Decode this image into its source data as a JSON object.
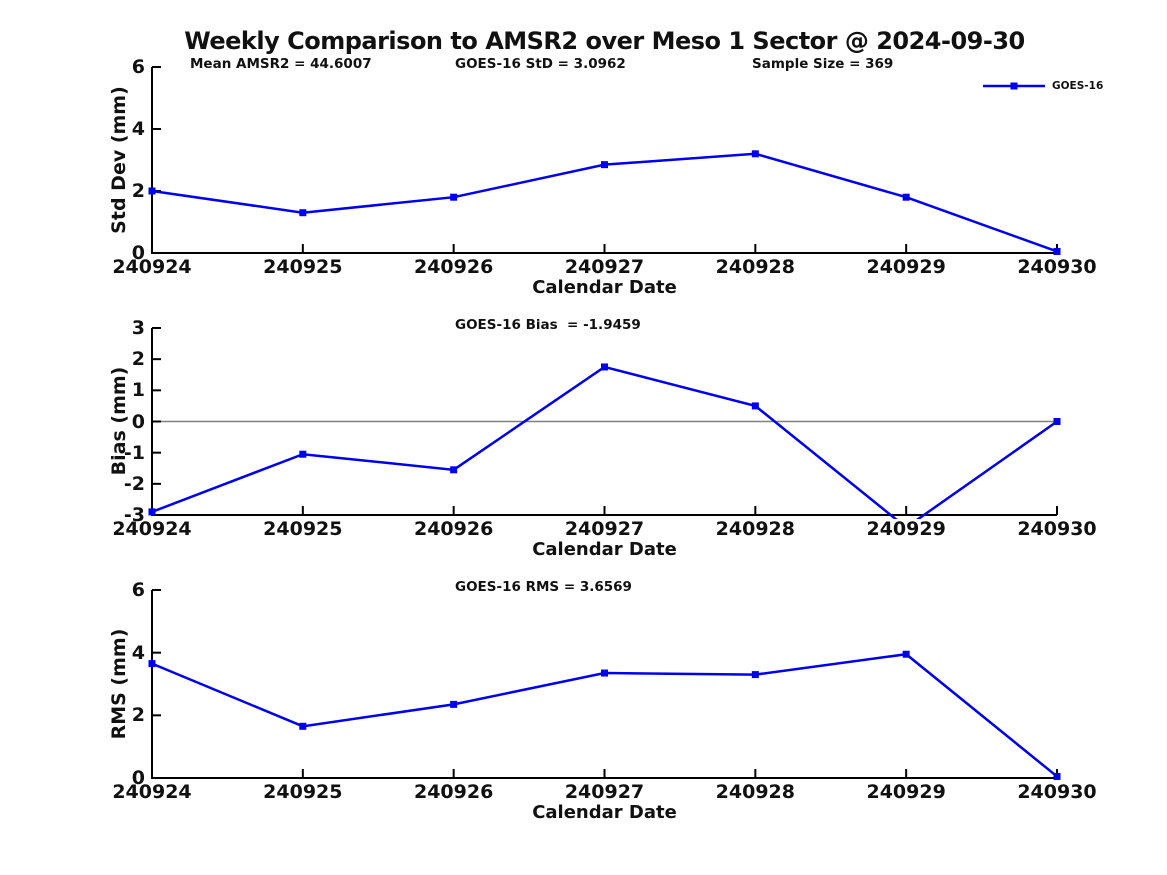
{
  "title": "Weekly Comparison to AMSR2 over Meso 1 Sector @ 2024-09-30",
  "colors": {
    "line": "#0000EE",
    "axis": "#000000",
    "zero_line": "#808080",
    "text": "#111111"
  },
  "chart_data": [
    {
      "type": "line",
      "name": "std-dev",
      "categories": [
        "240924",
        "240925",
        "240926",
        "240927",
        "240928",
        "240929",
        "240930"
      ],
      "series": [
        {
          "name": "GOES-16",
          "values": [
            2.0,
            1.3,
            1.8,
            2.85,
            3.2,
            1.8,
            0.05
          ]
        }
      ],
      "ylim": [
        0,
        6
      ],
      "yticks": [
        0,
        2,
        4,
        6
      ],
      "zero_line": false,
      "ylabel": "Std Dev (mm)",
      "xlabel": "Calendar Date",
      "legend": "GOES-16",
      "legend_position": "top-right",
      "grid": false,
      "annotations": [
        "Mean AMSR2 = 44.6007",
        "GOES-16 StD = 3.0962",
        "Sample Size = 369"
      ]
    },
    {
      "type": "line",
      "name": "bias",
      "categories": [
        "240924",
        "240925",
        "240926",
        "240927",
        "240928",
        "240929",
        "240930"
      ],
      "series": [
        {
          "name": "GOES-16",
          "values": [
            -2.9,
            -1.05,
            -1.55,
            1.75,
            0.5,
            -3.4,
            0.0
          ]
        }
      ],
      "ylim": [
        -3,
        3
      ],
      "yticks": [
        3,
        2,
        1,
        0,
        -1,
        -2,
        -3
      ],
      "zero_line": true,
      "ylabel": "Bias (mm)",
      "xlabel": "Calendar Date",
      "grid": false,
      "annotations": [
        "GOES-16 Bias  = -1.9459"
      ]
    },
    {
      "type": "line",
      "name": "rms",
      "categories": [
        "240924",
        "240925",
        "240926",
        "240927",
        "240928",
        "240929",
        "240930"
      ],
      "series": [
        {
          "name": "GOES-16",
          "values": [
            3.65,
            1.65,
            2.35,
            3.35,
            3.3,
            3.95,
            0.05
          ]
        }
      ],
      "ylim": [
        0,
        6
      ],
      "yticks": [
        0,
        2,
        4,
        6
      ],
      "zero_line": false,
      "ylabel": "RMS (mm)",
      "xlabel": "Calendar Date",
      "grid": false,
      "annotations": [
        "GOES-16 RMS = 3.6569"
      ]
    }
  ]
}
